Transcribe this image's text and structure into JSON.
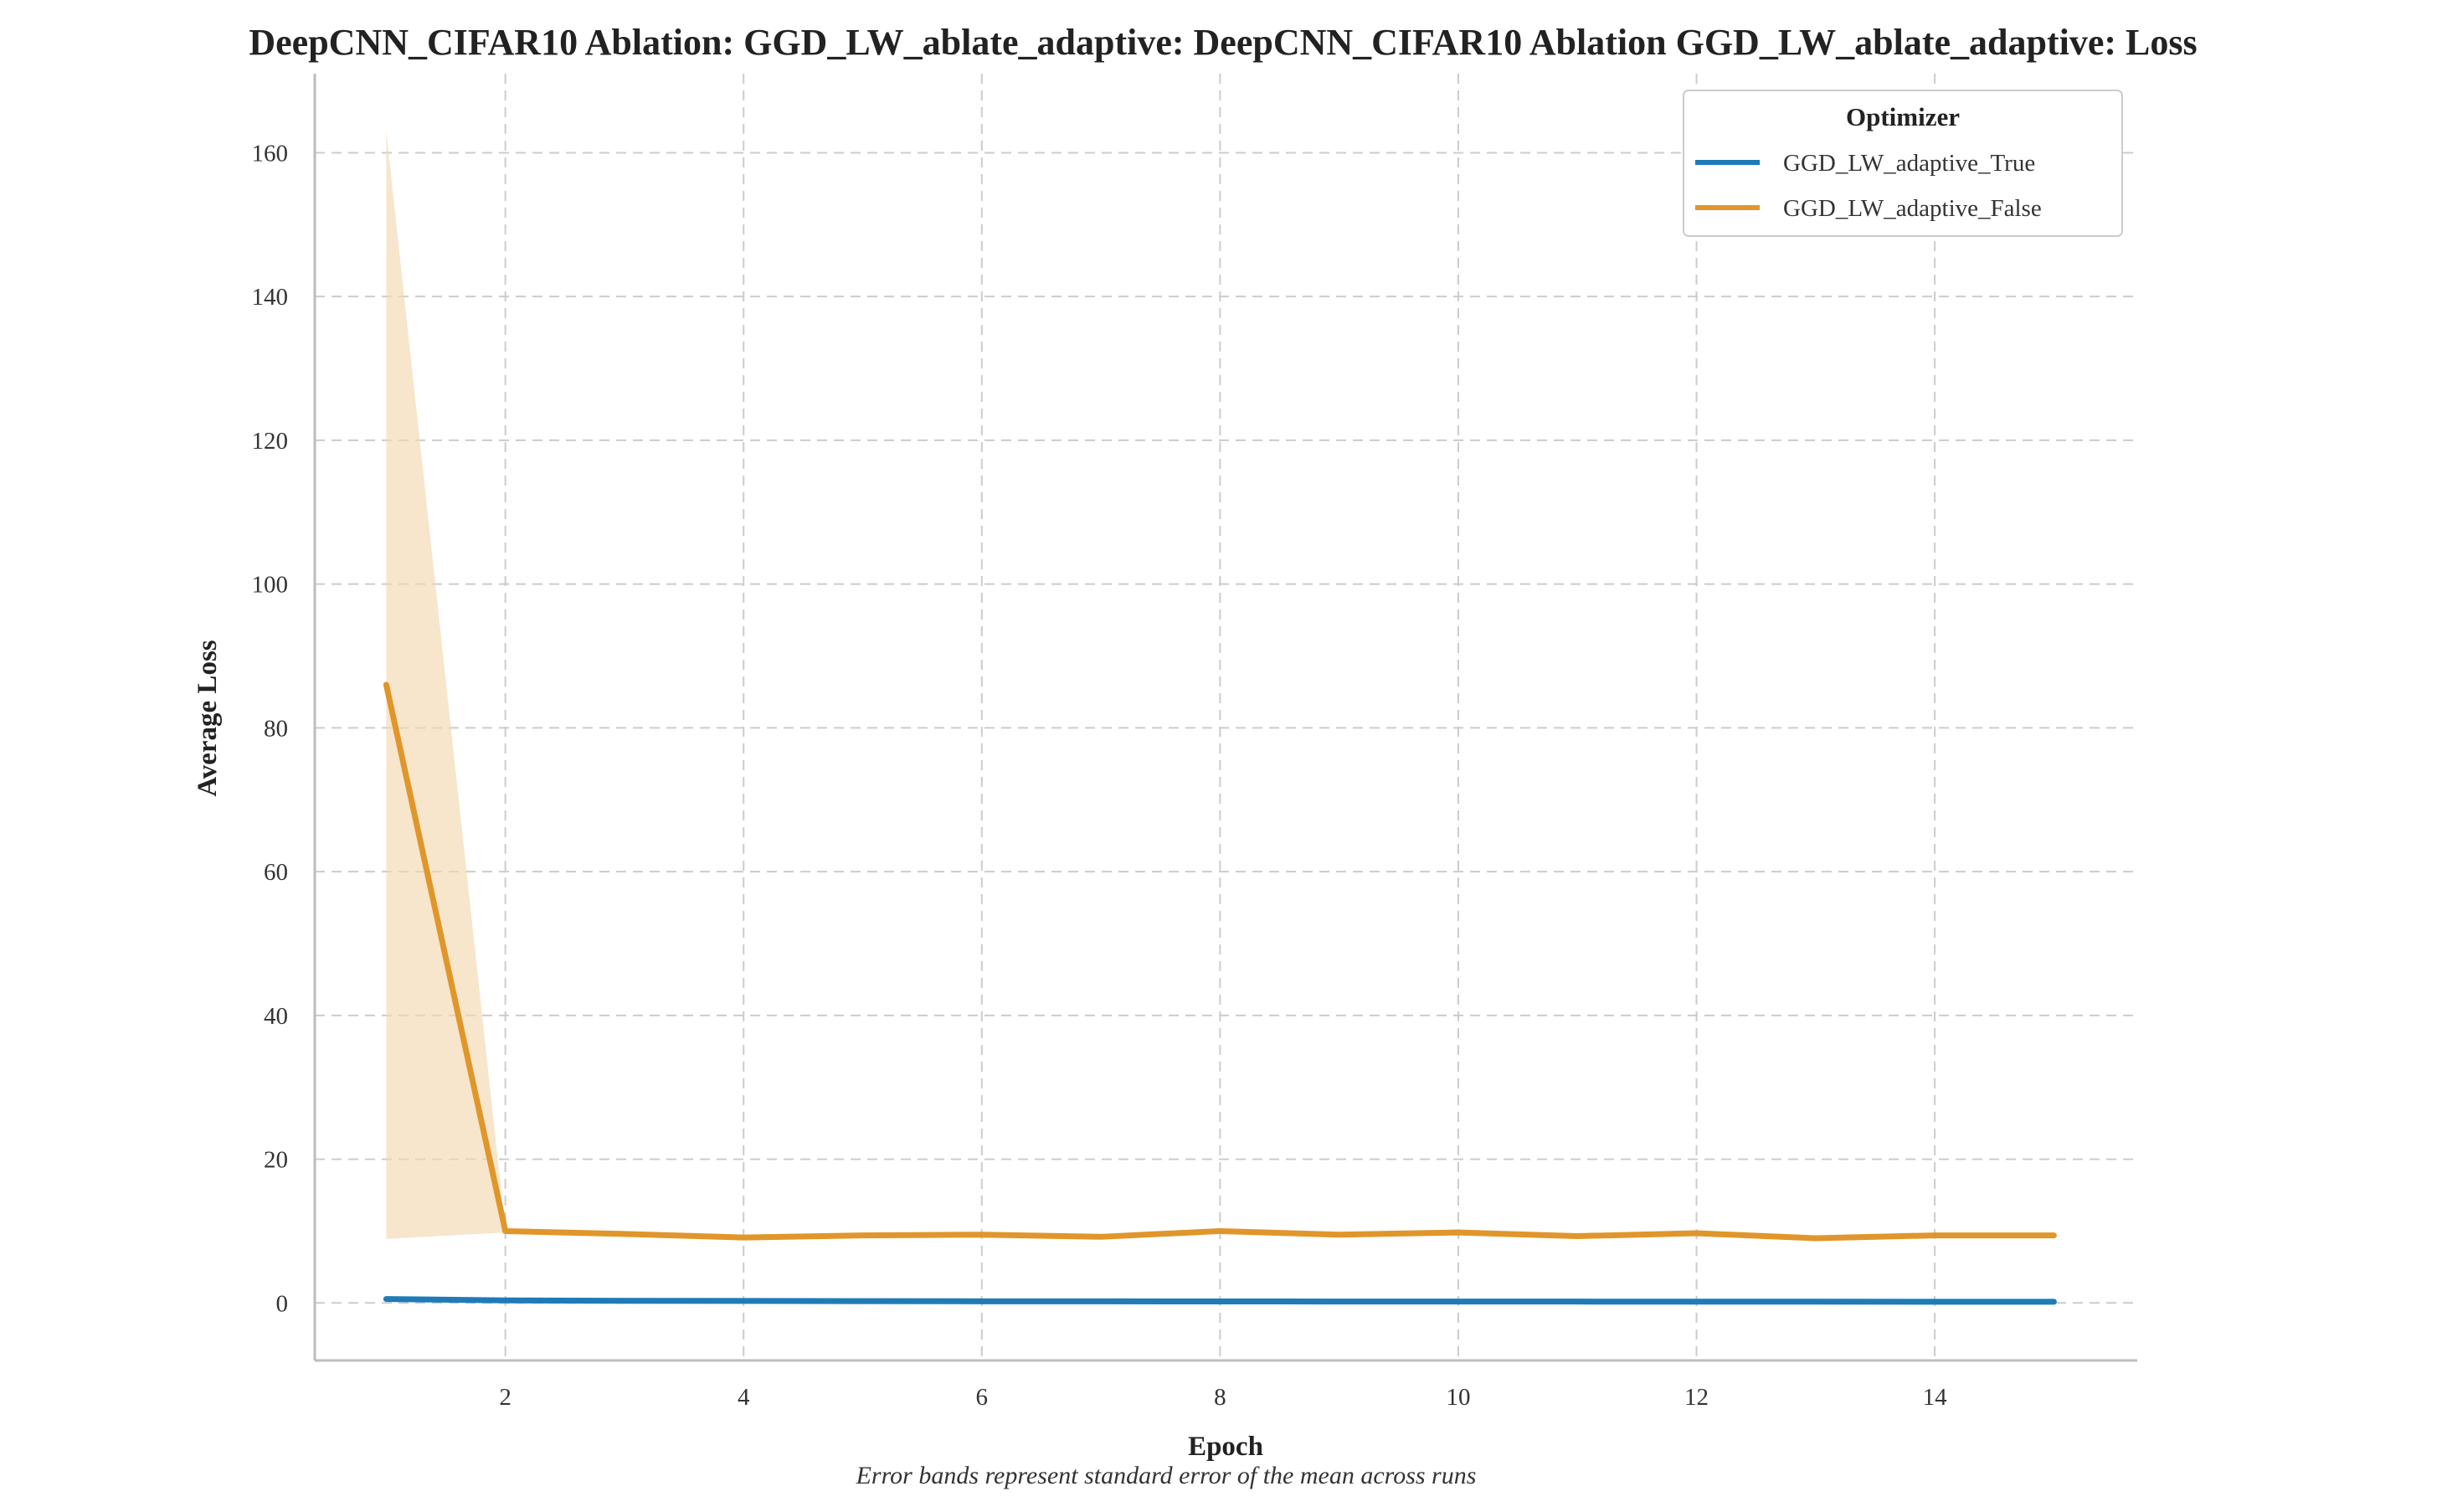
{
  "chart_data": {
    "type": "line",
    "title": "DeepCNN_CIFAR10 Ablation: GGD_LW_ablate_adaptive: DeepCNN_CIFAR10 Ablation GGD_LW_ablate_adaptive: Loss",
    "xlabel": "Epoch",
    "ylabel": "Average Loss",
    "caption": "Error bands represent standard error of the mean across runs",
    "xlim": [
      0.4,
      15.7
    ],
    "ylim": [
      -8,
      171
    ],
    "xticks": [
      2,
      4,
      6,
      8,
      10,
      12,
      14
    ],
    "yticks": [
      0,
      20,
      40,
      60,
      80,
      100,
      120,
      140,
      160
    ],
    "grid": true,
    "legend": {
      "title": "Optimizer",
      "placement": "top-right"
    },
    "x": [
      1,
      2,
      3,
      4,
      5,
      6,
      7,
      8,
      9,
      10,
      11,
      12,
      13,
      14,
      15
    ],
    "series": [
      {
        "name": "GGD_LW_adaptive_True",
        "color": "#1f7bb6",
        "values": [
          0.55,
          0.35,
          0.3,
          0.28,
          0.25,
          0.23,
          0.22,
          0.21,
          0.2,
          0.19,
          0.19,
          0.18,
          0.18,
          0.17,
          0.17
        ],
        "band_lower": [
          0.5,
          0.32,
          0.28,
          0.26,
          0.23,
          0.21,
          0.2,
          0.19,
          0.18,
          0.17,
          0.17,
          0.16,
          0.16,
          0.15,
          0.15
        ],
        "band_upper": [
          0.6,
          0.38,
          0.32,
          0.3,
          0.27,
          0.25,
          0.24,
          0.23,
          0.22,
          0.21,
          0.21,
          0.2,
          0.2,
          0.19,
          0.19
        ]
      },
      {
        "name": "GGD_LW_adaptive_False",
        "color": "#e0962a",
        "band_color": "#f3d9b0",
        "values": [
          86,
          10.0,
          9.6,
          9.1,
          9.4,
          9.5,
          9.2,
          10.0,
          9.5,
          9.8,
          9.3,
          9.7,
          9.0,
          9.4,
          9.4
        ],
        "band_lower": [
          8.9,
          9.8,
          9.4,
          8.9,
          9.2,
          9.3,
          9.0,
          9.8,
          9.3,
          9.6,
          9.1,
          9.5,
          8.8,
          9.2,
          9.2
        ],
        "band_upper": [
          163,
          10.2,
          9.8,
          9.3,
          9.6,
          9.7,
          9.4,
          10.2,
          9.7,
          10.0,
          9.5,
          9.9,
          9.2,
          9.6,
          9.6
        ]
      }
    ]
  }
}
